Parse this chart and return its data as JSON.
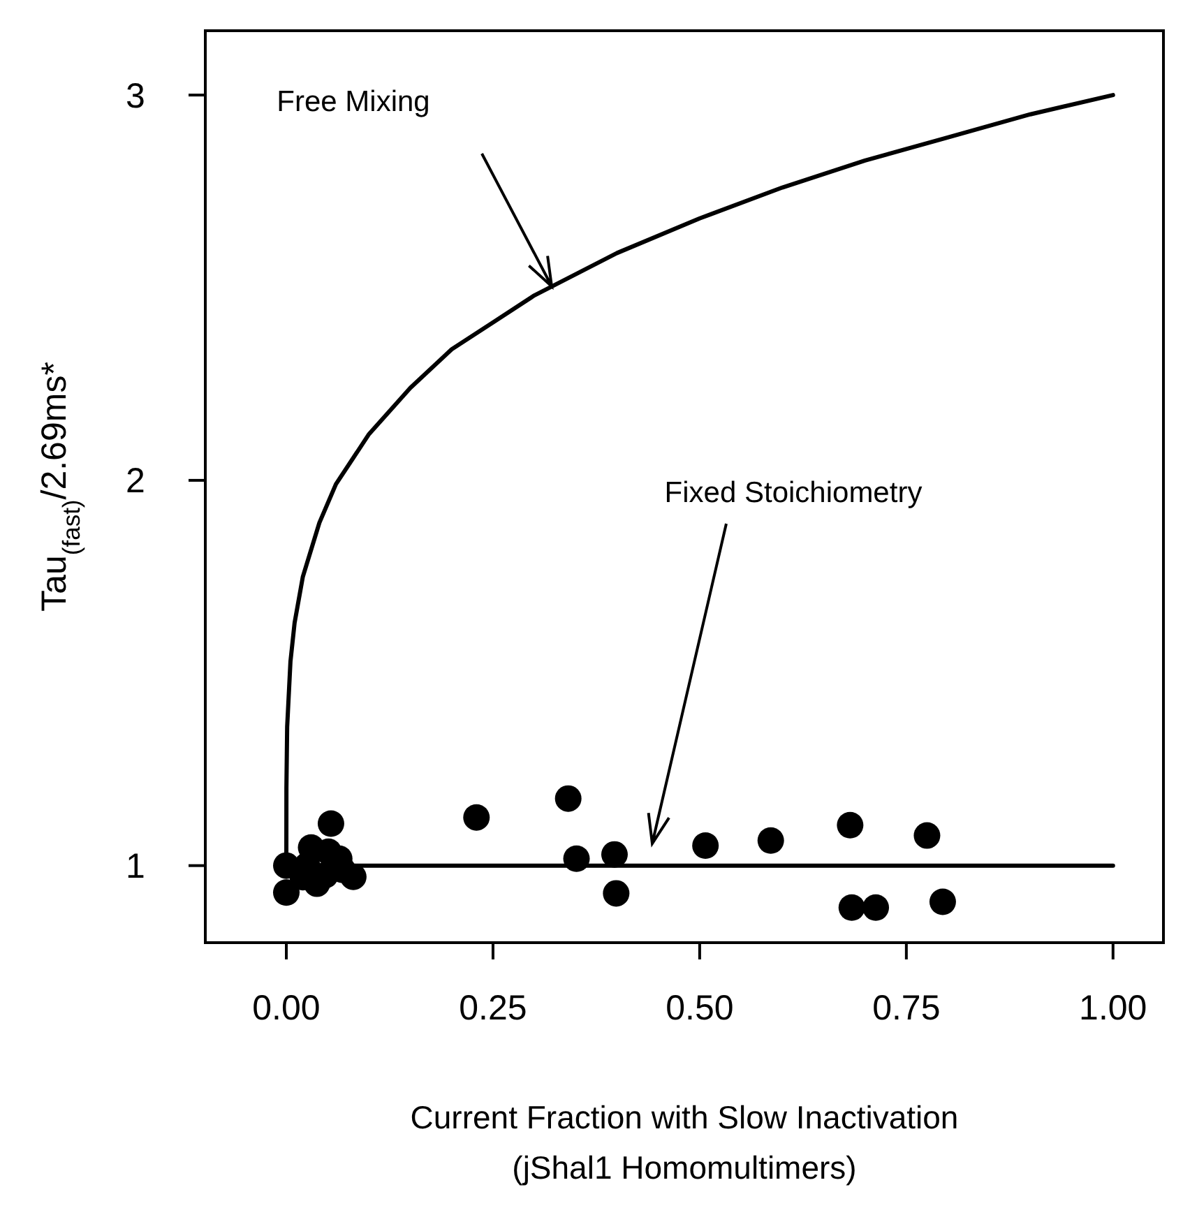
{
  "chart_data": {
    "type": "scatter",
    "xlabel": "Current Fraction with Slow Inactivation\n(jShal1 Homomultimers)",
    "ylabel": "Tau$_{(fast)}$/2.69ms*",
    "xlim": [
      -0.098,
      1.061
    ],
    "ylim": [
      0.8,
      3.167
    ],
    "xticks": [
      {
        "value": 0,
        "label": "0.00"
      },
      {
        "value": 0.25,
        "label": "0.25"
      },
      {
        "value": 0.5,
        "label": "0.50"
      },
      {
        "value": 0.75,
        "label": "0.75"
      },
      {
        "value": 1,
        "label": "1.00"
      }
    ],
    "yticks": [
      1,
      2,
      3
    ],
    "grid": false,
    "marker": "circle",
    "series": [
      {
        "type": "line",
        "marker": "none",
        "color": "#000000",
        "x": [
          0,
          0.0001,
          0.001,
          0.005,
          0.01,
          0.02,
          0.04,
          0.06,
          0.1,
          0.15,
          0.2,
          0.25,
          0.3,
          0.4,
          0.5,
          0.6,
          0.7,
          0.8,
          0.9,
          1
        ],
        "values": [
          1,
          1.2,
          1.36,
          1.53,
          1.63,
          1.75,
          1.89,
          1.99,
          2.12,
          2.24,
          2.34,
          2.41,
          2.48,
          2.59,
          2.68,
          2.76,
          2.83,
          2.89,
          2.95,
          3
        ]
      },
      {
        "type": "line",
        "marker": "none",
        "color": "#000000",
        "x": [
          0,
          1
        ],
        "values": [
          1,
          1
        ]
      },
      {
        "color": "#000000",
        "x": [
          0.054,
          0,
          0,
          0.03,
          0.051,
          0.064,
          0.081,
          0.037,
          0.02,
          0.047,
          0.068,
          0.025,
          0.23,
          0.341,
          0.351,
          0.397,
          0.399,
          0.507,
          0.586,
          0.682,
          0.684,
          0.713,
          0.775,
          0.794
        ],
        "values": [
          1.109,
          1,
          0.93,
          1.047,
          1.036,
          1.018,
          0.971,
          0.953,
          0.97,
          0.975,
          0.989,
          1,
          1.125,
          1.174,
          1.018,
          1.029,
          0.928,
          1.052,
          1.065,
          1.105,
          0.891,
          0.891,
          1.078,
          0.906
        ]
      }
    ],
    "annotations": [
      "Free Mixing",
      "Fixed Stoichiometry"
    ]
  }
}
